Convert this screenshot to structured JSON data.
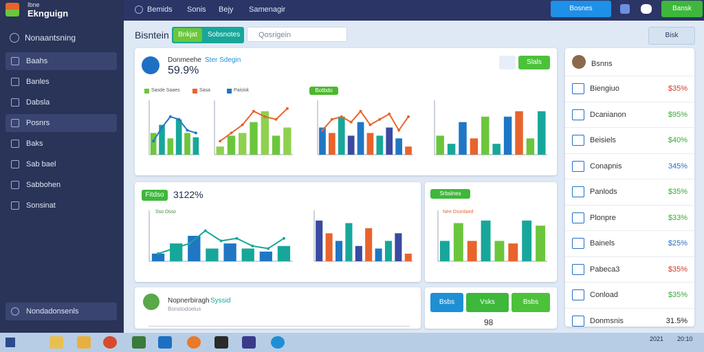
{
  "app": {
    "logo_sub": "Ibne",
    "logo_title": "Eknguign"
  },
  "sidebar": {
    "header": "Nonaantsning",
    "items": [
      "Baahs",
      "Banles",
      "Dabsla",
      "Posnrs",
      "Baks",
      "Sab bael",
      "Sabbohen",
      "Sonsinat"
    ],
    "footer": "Nondadonsenls"
  },
  "topbar": {
    "nav": [
      "Bemids",
      "Sonis",
      "Bejy",
      "Samenagir"
    ],
    "button_left": "Bosnes",
    "button_right": "Bansk"
  },
  "toolbar": {
    "title": "Bisntein",
    "tabs": [
      "Bnkjat",
      "Sobsnotes"
    ],
    "search": "Qosrigein",
    "button": "Bisk"
  },
  "overview": {
    "title": "Donmeehe",
    "subtitle": "Ster Sdegin",
    "value": "59.9%",
    "button": "Slals",
    "legend": [
      "Sasde Saaes",
      "Sasa",
      "Paisisk"
    ],
    "badge": "Botbdo",
    "charts": [
      {
        "ymax": 10,
        "bars": [
          4,
          5.5,
          3,
          6.5,
          4,
          3.2
        ],
        "palette": [
          "#6cc63c",
          "#17a79a"
        ],
        "line": [
          2.5,
          5,
          7,
          6.5,
          4.5,
          4
        ],
        "line_color": "#1f77c4"
      },
      {
        "ymax": 10,
        "bars": [
          1.5,
          3.5,
          4,
          6,
          8,
          3.5,
          5
        ],
        "palette": [
          "#8fd14f",
          "#6cc63c"
        ],
        "line": [
          2.5,
          4,
          5.5,
          8,
          7,
          6.5,
          8.5
        ],
        "line_color": "#e8642c"
      },
      {
        "ymax": 10,
        "bars": [
          5,
          4,
          7,
          3.5,
          6,
          4,
          3.5,
          5,
          3,
          1.5
        ],
        "palette": [
          "#1f77c4",
          "#e8642c",
          "#17a79a",
          "#3a4aa0"
        ],
        "line": [
          4.5,
          6.5,
          7,
          6,
          8,
          5.5,
          6.5,
          7.5,
          4.5,
          7
        ],
        "line_color": "#e8642c"
      },
      {
        "ymax": 10,
        "bars": [
          3.5,
          2,
          6,
          3,
          7,
          2,
          7,
          8,
          3,
          8
        ],
        "palette": [
          "#6cc63c",
          "#17a79a",
          "#1f77c4",
          "#e8642c"
        ]
      }
    ]
  },
  "revenue": {
    "badge": "Fitdso",
    "value": "3122%",
    "legend": [
      "Sso Dsso"
    ],
    "charts": [
      {
        "ymax": 10,
        "bars": [
          1.5,
          3.5,
          5,
          2.5,
          3.5,
          2.5,
          1.9,
          3
        ],
        "palette": [
          "#1f77c4",
          "#17a79a"
        ],
        "line": [
          1.5,
          2.5,
          3.5,
          6,
          4,
          4.5,
          3,
          2.5,
          4.5
        ],
        "line_color": "#17a79a"
      },
      {
        "ymax": 10,
        "bars": [
          8,
          5.5,
          4,
          7.5,
          3,
          6.5,
          2.5,
          4,
          5.5,
          1.5
        ],
        "palette": [
          "#3a4aa0",
          "#e8642c",
          "#1f77c4",
          "#17a79a"
        ]
      }
    ]
  },
  "sales": {
    "badge": "Srbslnes",
    "subtitle": "Nee Dsonlaed",
    "charts": [
      {
        "ymax": 10,
        "bars": [
          4,
          7.5,
          4,
          8,
          4,
          3.5,
          8,
          7
        ],
        "palette": [
          "#17a79a",
          "#6cc63c",
          "#e8642c"
        ]
      }
    ]
  },
  "profile": {
    "name": "Nopnerbiragh",
    "tag": "Syssid",
    "note": "Bonstodoelus"
  },
  "actions": {
    "buttons": [
      "Bsbs",
      "Vsks",
      "Bsbs"
    ],
    "footer": "98"
  },
  "panel": {
    "header": "Bsnns",
    "items": [
      {
        "name": "Biengiuo",
        "value": "$35%",
        "color": "#d23a2a"
      },
      {
        "name": "Dcanianon",
        "value": "$95%",
        "color": "#3aa83a"
      },
      {
        "name": "Beisiels",
        "value": "$40%",
        "color": "#3aa83a"
      },
      {
        "name": "Conapnis",
        "value": "345%",
        "color": "#2a6fc4"
      },
      {
        "name": "Panlods",
        "value": "$35%",
        "color": "#3aa83a"
      },
      {
        "name": "Plonpre",
        "value": "$33%",
        "color": "#3aa83a"
      },
      {
        "name": "Bainels",
        "value": "$25%",
        "color": "#2a6fc4"
      },
      {
        "name": "Pabeca3",
        "value": "$35%",
        "color": "#d23a2a"
      },
      {
        "name": "Conload",
        "value": "$35%",
        "color": "#3aa83a"
      },
      {
        "name": "Donmsnis",
        "value": "31.5%",
        "color": "#222222"
      }
    ]
  },
  "taskbar": {
    "date": "2021",
    "time": "20:10"
  }
}
